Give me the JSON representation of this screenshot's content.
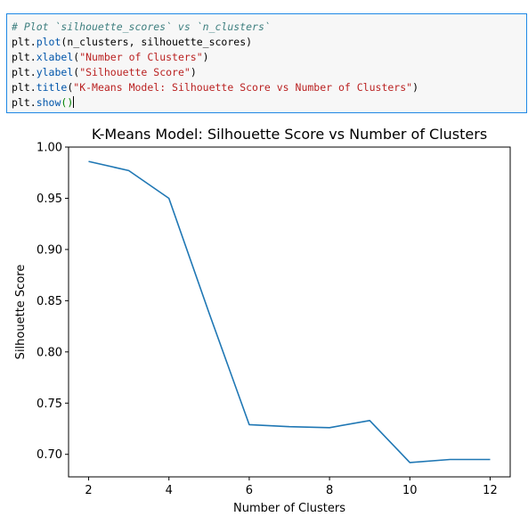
{
  "code_cell": {
    "lines": [
      "# Plot `silhouette_scores` vs `n_clusters`",
      "plt.plot(n_clusters, silhouette_scores)",
      "plt.xlabel(\"Number of Clusters\")",
      "plt.ylabel(\"Silhouette Score\")",
      "plt.title(\"K-Means Model: Silhouette Score vs Number of Clusters\")",
      "plt.show()"
    ]
  },
  "chart_data": {
    "type": "line",
    "title": "K-Means Model: Silhouette Score vs Number of Clusters",
    "xlabel": "Number of Clusters",
    "ylabel": "Silhouette Score",
    "x": [
      2,
      3,
      4,
      5,
      6,
      7,
      8,
      9,
      10,
      11,
      12
    ],
    "y": [
      0.986,
      0.977,
      0.95,
      0.838,
      0.729,
      0.727,
      0.726,
      0.733,
      0.692,
      0.695,
      0.695
    ],
    "xlim": [
      1.5,
      12.5
    ],
    "ylim": [
      0.678,
      1.0
    ],
    "xticks": [
      2,
      4,
      6,
      8,
      10,
      12
    ],
    "yticks": [
      0.7,
      0.75,
      0.8,
      0.85,
      0.9,
      0.95,
      1.0
    ],
    "ytick_labels": [
      "0.70",
      "0.75",
      "0.80",
      "0.85",
      "0.90",
      "0.95",
      "1.00"
    ],
    "line_color": "#1f77b4",
    "grid": false
  }
}
